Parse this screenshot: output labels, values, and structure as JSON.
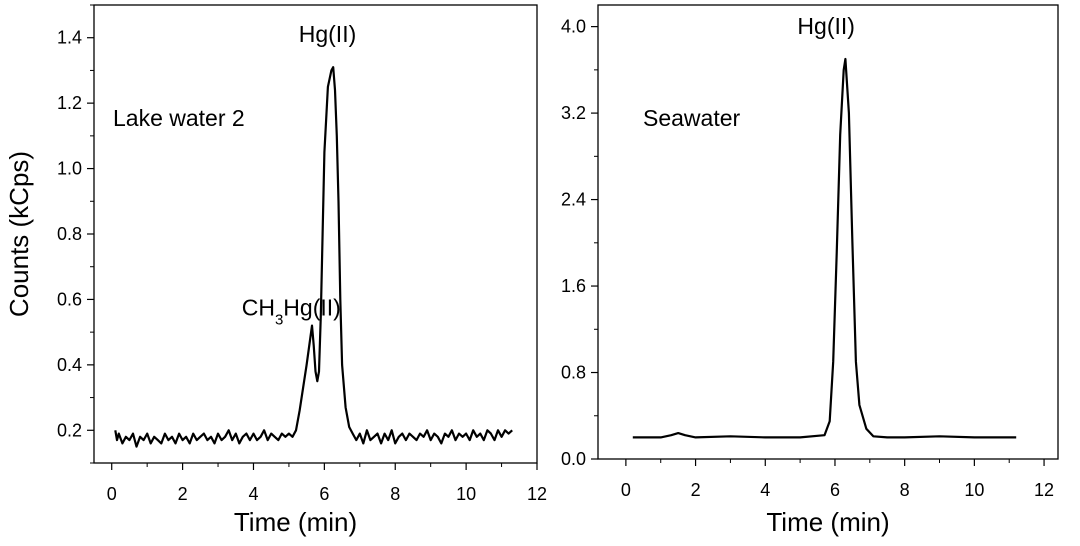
{
  "chart_data": [
    {
      "type": "line",
      "panel_label": "Lake water 2",
      "xlabel": "Time (min)",
      "ylabel": "Counts (kCps)",
      "xlim": [
        -0.5,
        12
      ],
      "ylim": [
        0.1,
        1.5
      ],
      "x_ticks": [
        0,
        2,
        4,
        6,
        8,
        10,
        12
      ],
      "y_ticks": [
        0.2,
        0.4,
        0.6,
        0.8,
        1.0,
        1.2,
        1.4
      ],
      "x_tick_labels": [
        "0",
        "2",
        "4",
        "6",
        "8",
        "10",
        "12"
      ],
      "y_tick_labels": [
        "0.2",
        "0.4",
        "0.6",
        "0.8",
        "1.0",
        "1.2",
        "1.4"
      ],
      "annotations": [
        {
          "text": "CH",
          "sub": "3",
          "rest": "Hg(II)",
          "x": 5.7,
          "y": 0.52
        },
        {
          "text": "Hg(II)",
          "x": 6.35,
          "y": 1.31
        }
      ],
      "series": [
        {
          "x": [
            0.1,
            0.15,
            0.2,
            0.3,
            0.4,
            0.5,
            0.6,
            0.7,
            0.8,
            0.9,
            1.0,
            1.1,
            1.2,
            1.3,
            1.4,
            1.5,
            1.6,
            1.7,
            1.8,
            1.9,
            2.0,
            2.1,
            2.2,
            2.3,
            2.4,
            2.5,
            2.6,
            2.7,
            2.8,
            2.9,
            3.0,
            3.1,
            3.2,
            3.3,
            3.4,
            3.5,
            3.6,
            3.7,
            3.8,
            3.9,
            4.0,
            4.1,
            4.2,
            4.3,
            4.4,
            4.5,
            4.6,
            4.7,
            4.8,
            4.9,
            5.0,
            5.1,
            5.2,
            5.3,
            5.4,
            5.5,
            5.6,
            5.65,
            5.7,
            5.75,
            5.8,
            5.85,
            5.9,
            5.95,
            6.0,
            6.1,
            6.2,
            6.25,
            6.3,
            6.35,
            6.4,
            6.45,
            6.5,
            6.6,
            6.7,
            6.8,
            6.9,
            7.0,
            7.1,
            7.2,
            7.3,
            7.4,
            7.5,
            7.6,
            7.7,
            7.8,
            7.9,
            8.0,
            8.1,
            8.2,
            8.3,
            8.4,
            8.5,
            8.6,
            8.7,
            8.8,
            8.9,
            9.0,
            9.1,
            9.2,
            9.3,
            9.4,
            9.5,
            9.6,
            9.7,
            9.8,
            9.9,
            10.0,
            10.1,
            10.2,
            10.3,
            10.4,
            10.5,
            10.6,
            10.7,
            10.8,
            10.9,
            11.0,
            11.1,
            11.2,
            11.3
          ],
          "y": [
            0.2,
            0.17,
            0.19,
            0.16,
            0.18,
            0.17,
            0.19,
            0.15,
            0.18,
            0.17,
            0.19,
            0.16,
            0.18,
            0.17,
            0.16,
            0.19,
            0.17,
            0.18,
            0.16,
            0.19,
            0.17,
            0.18,
            0.16,
            0.19,
            0.17,
            0.18,
            0.19,
            0.17,
            0.18,
            0.16,
            0.19,
            0.17,
            0.18,
            0.2,
            0.17,
            0.19,
            0.16,
            0.18,
            0.19,
            0.17,
            0.19,
            0.17,
            0.18,
            0.2,
            0.17,
            0.19,
            0.18,
            0.17,
            0.19,
            0.18,
            0.19,
            0.18,
            0.2,
            0.26,
            0.33,
            0.4,
            0.48,
            0.52,
            0.46,
            0.38,
            0.35,
            0.38,
            0.55,
            0.8,
            1.05,
            1.25,
            1.3,
            1.31,
            1.24,
            1.1,
            0.9,
            0.6,
            0.4,
            0.27,
            0.21,
            0.19,
            0.17,
            0.19,
            0.16,
            0.2,
            0.17,
            0.18,
            0.19,
            0.16,
            0.19,
            0.17,
            0.2,
            0.16,
            0.18,
            0.19,
            0.17,
            0.19,
            0.18,
            0.17,
            0.19,
            0.18,
            0.2,
            0.17,
            0.19,
            0.18,
            0.16,
            0.19,
            0.18,
            0.2,
            0.17,
            0.19,
            0.18,
            0.19,
            0.17,
            0.2,
            0.18,
            0.19,
            0.17,
            0.2,
            0.19,
            0.17,
            0.2,
            0.18,
            0.2,
            0.19,
            0.2
          ]
        }
      ]
    },
    {
      "type": "line",
      "panel_label": "Seawater",
      "xlabel": "Time (min)",
      "ylabel": "",
      "xlim": [
        -0.8,
        12.4
      ],
      "ylim": [
        0.0,
        4.2
      ],
      "x_ticks": [
        0,
        2,
        4,
        6,
        8,
        10,
        12
      ],
      "y_ticks": [
        0.0,
        0.8,
        1.6,
        2.4,
        3.2,
        4.0
      ],
      "x_tick_labels": [
        "0",
        "2",
        "4",
        "6",
        "8",
        "10",
        "12"
      ],
      "y_tick_labels": [
        "0.0",
        "0.8",
        "1.6",
        "2.4",
        "3.2",
        "4.0"
      ],
      "annotations": [
        {
          "text": "Hg(II)",
          "x": 6.3,
          "y": 3.7
        }
      ],
      "series": [
        {
          "x": [
            0.2,
            0.5,
            1.0,
            1.3,
            1.5,
            1.7,
            2.0,
            3.0,
            4.0,
            5.0,
            5.7,
            5.85,
            5.95,
            6.05,
            6.15,
            6.25,
            6.3,
            6.4,
            6.5,
            6.6,
            6.7,
            6.9,
            7.1,
            7.5,
            8.0,
            9.0,
            10.0,
            11.2
          ],
          "y": [
            0.2,
            0.2,
            0.2,
            0.22,
            0.24,
            0.22,
            0.2,
            0.21,
            0.2,
            0.2,
            0.22,
            0.35,
            0.9,
            1.9,
            3.0,
            3.6,
            3.7,
            3.2,
            2.0,
            0.9,
            0.5,
            0.28,
            0.21,
            0.2,
            0.2,
            0.21,
            0.2,
            0.2
          ]
        }
      ]
    }
  ]
}
